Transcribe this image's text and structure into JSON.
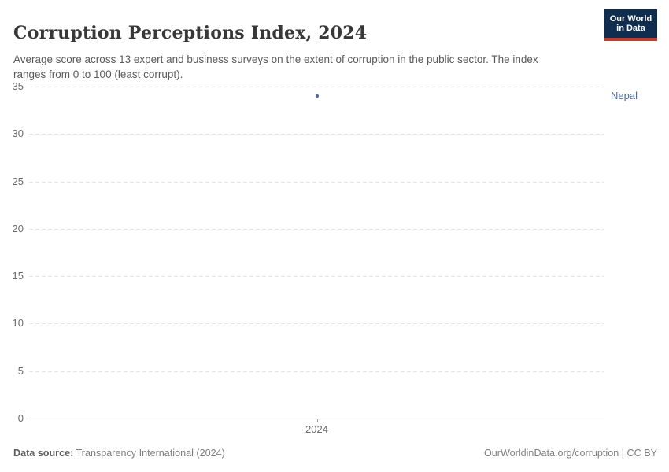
{
  "header": {
    "title": "Corruption Perceptions Index, 2024",
    "subtitle": "Average score across 13 expert and business surveys on the extent of corruption in the public sector. The index ranges from 0 to 100 (least corrupt).",
    "logo": {
      "line1": "Our World",
      "line2": "in Data",
      "bg_color": "#102d50",
      "stripe_color": "#c13c33"
    }
  },
  "chart_data": {
    "type": "scatter",
    "title": "Corruption Perceptions Index, 2024",
    "x": [
      2024
    ],
    "series": [
      {
        "name": "Nepal",
        "values": [
          34
        ]
      }
    ],
    "xlabel": "",
    "ylabel": "",
    "ylim": [
      0,
      35
    ],
    "yticks": [
      0,
      5,
      10,
      15,
      20,
      25,
      30,
      35
    ],
    "xticks": [
      "2024"
    ],
    "grid": "horizontal-dashed",
    "legend_position": "right-of-point",
    "point_color": "#4a66a0",
    "entity_label_color": "#4c6a9c"
  },
  "footer": {
    "source_label": "Data source:",
    "source_value": "Transparency International (2024)",
    "credit": "OurWorldinData.org/corruption | CC BY"
  }
}
